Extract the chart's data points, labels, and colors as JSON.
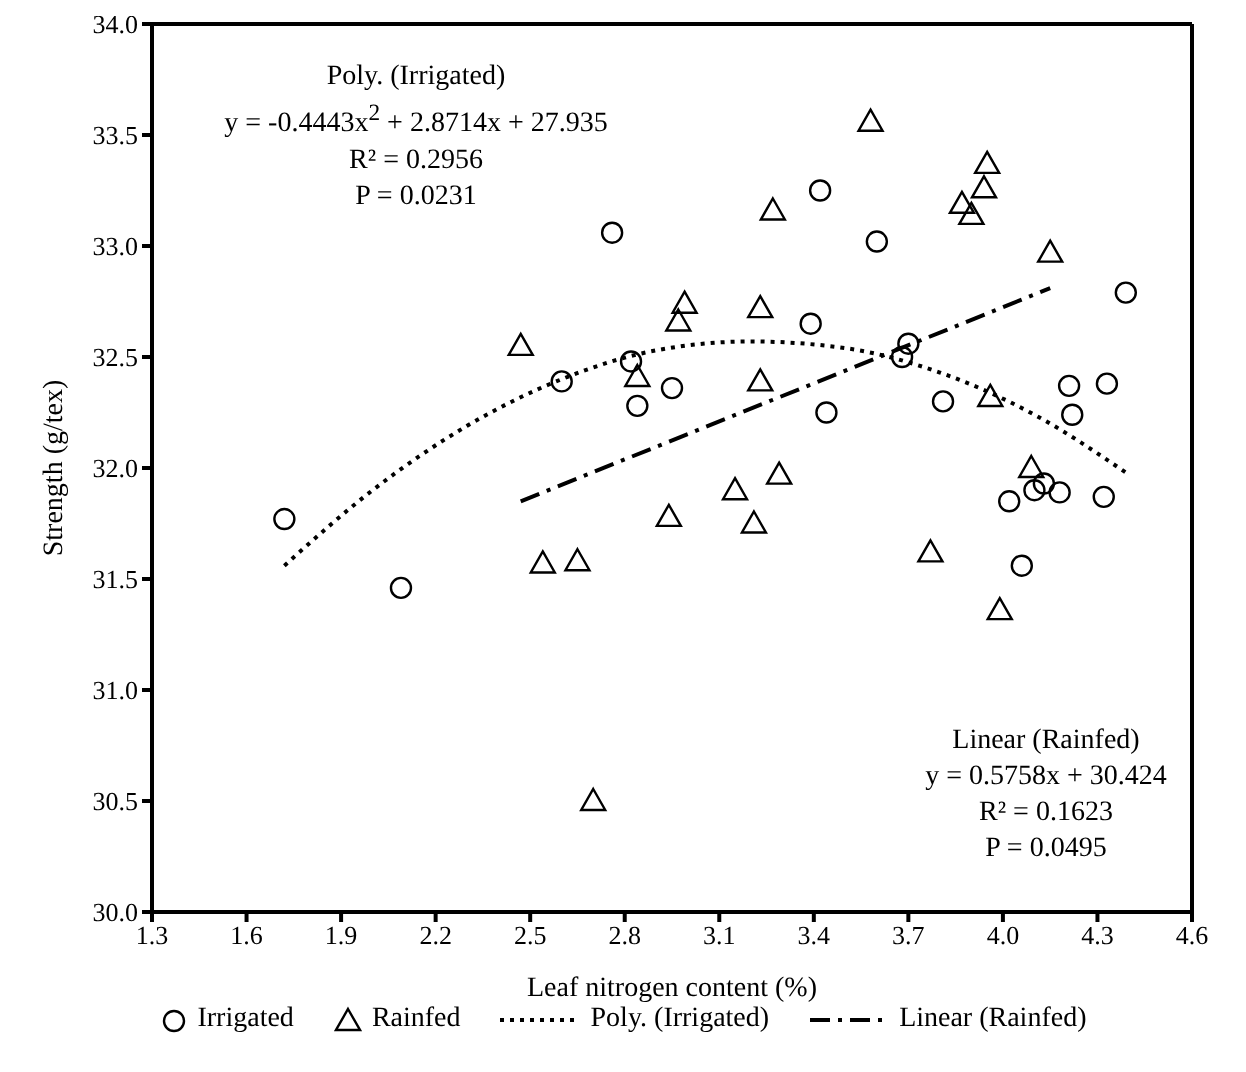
{
  "chart_data": {
    "type": "scatter",
    "xlabel": "Leaf nitrogen content (%)",
    "ylabel": "Strength (g/tex)",
    "xlim": [
      1.3,
      4.6
    ],
    "xticks": [
      1.3,
      1.6,
      1.9,
      2.2,
      2.5,
      2.8,
      3.1,
      3.4,
      3.7,
      {
        "value": 4.0,
        "label": "4.0"
      },
      4.3,
      4.6
    ],
    "ylim": [
      30,
      34
    ],
    "yticks": [
      {
        "value": 30,
        "label": "30.0"
      },
      {
        "value": 30.5,
        "label": "30.5"
      },
      {
        "value": 31,
        "label": "31.0"
      },
      {
        "value": 31.5,
        "label": "31.5"
      },
      {
        "value": 32,
        "label": "32.0"
      },
      {
        "value": 32.5,
        "label": "32.5"
      },
      {
        "value": 33,
        "label": "33.0"
      },
      {
        "value": 33.5,
        "label": "33.5"
      },
      {
        "value": 34,
        "label": "34.0"
      }
    ],
    "grid": false,
    "legend": "bottom",
    "series": [
      {
        "name": "Irrigated",
        "marker": "circle",
        "color": "#000000",
        "x": [
          1.72,
          2.09,
          2.76,
          2.6,
          2.82,
          2.84,
          3.42,
          3.6,
          3.39,
          3.7,
          3.68,
          2.95,
          3.44,
          3.81,
          4.39,
          4.21,
          4.33,
          4.22,
          4.02,
          4.1,
          4.13,
          4.18,
          4.32,
          4.06
        ],
        "values": [
          31.77,
          31.46,
          33.06,
          32.39,
          32.48,
          32.28,
          33.25,
          33.02,
          32.65,
          32.56,
          32.5,
          32.36,
          32.25,
          32.3,
          32.79,
          32.37,
          32.38,
          32.24,
          31.85,
          31.9,
          31.93,
          31.89,
          31.87,
          31.56
        ]
      },
      {
        "name": "Rainfed",
        "marker": "triangle",
        "color": "#000000",
        "x": [
          2.47,
          2.84,
          3.58,
          3.95,
          3.94,
          3.87,
          3.9,
          3.27,
          4.15,
          2.99,
          2.97,
          3.23,
          3.23,
          3.96,
          2.94,
          3.15,
          3.21,
          3.29,
          3.77,
          3.99,
          4.09,
          2.54,
          2.65,
          2.7
        ],
        "values": [
          32.55,
          32.41,
          33.56,
          33.37,
          33.26,
          33.19,
          33.14,
          33.16,
          32.97,
          32.74,
          32.66,
          32.72,
          32.39,
          32.32,
          31.78,
          31.9,
          31.75,
          31.97,
          31.62,
          31.36,
          32.0,
          31.57,
          31.58,
          30.5
        ]
      },
      {
        "name": "Poly. (Irrigated)",
        "type": "line",
        "line_style": "dotted",
        "marker": "none",
        "color": "#000000",
        "x": [
          1.72,
          2.0,
          2.3,
          2.6,
          2.9,
          3.2,
          3.5,
          3.8,
          4.1,
          4.4
        ],
        "values": [
          31.56,
          31.9,
          32.19,
          32.4,
          32.53,
          32.57,
          32.54,
          32.43,
          32.24,
          31.97
        ]
      },
      {
        "name": "Linear (Rainfed)",
        "type": "line",
        "line_style": "dashed",
        "marker": "none",
        "color": "#000000",
        "x": [
          2.47,
          4.15
        ],
        "values": [
          31.85,
          32.81
        ]
      }
    ],
    "annotations": [
      "Poly. (Irrigated)\ny = -0.4443x$^{2}$ + 2.8714x + 27.935\nR² = 0.2956\nP = 0.0231",
      "Linear (Rainfed)\ny = 0.5758x + 30.424\nR² = 0.1623\nP = 0.0495"
    ]
  }
}
